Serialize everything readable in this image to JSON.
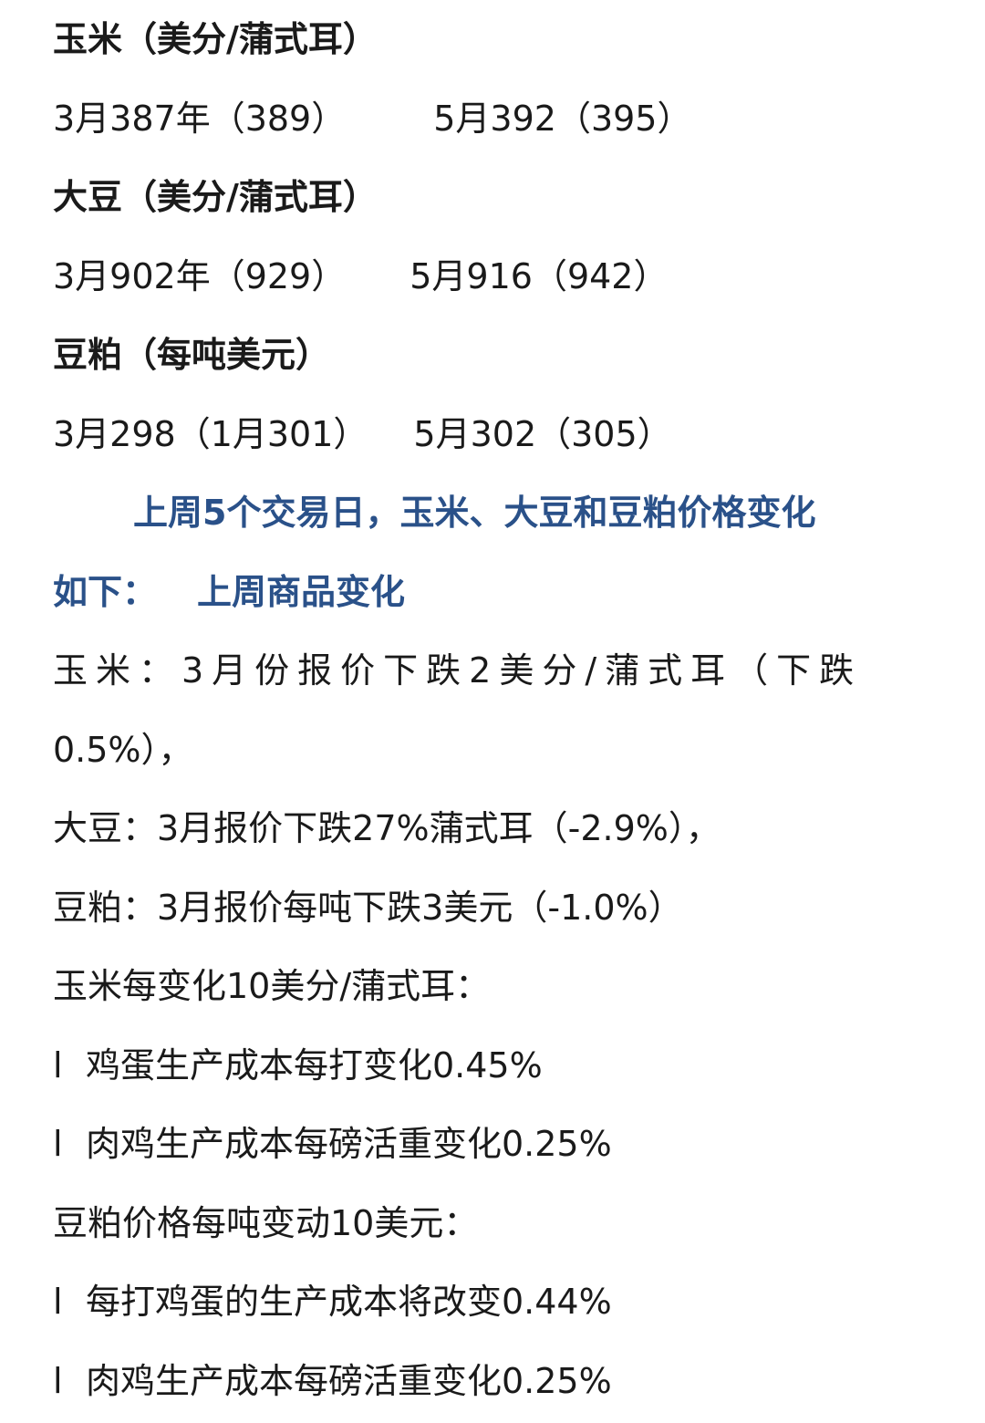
{
  "sections": [
    {
      "heading": "玉米（美分/蒲式耳）",
      "march": "3月387年（389）",
      "may": "5月392（395）"
    },
    {
      "heading": "大豆（美分/蒲式耳）",
      "march": "3月902年（929）",
      "may": "5月916（942）"
    },
    {
      "heading": "豆粕（每吨美元）",
      "march": "3月298（1月301）",
      "may": "5月302（305）"
    }
  ],
  "summary": {
    "line1": "上周5个交易日，玉米、大豆和豆粕价格变化",
    "line2a": "如下：",
    "line2b": "上周商品变化"
  },
  "changes": {
    "corn_a": "玉米：3月份报价下跌2美分/蒲式耳（下跌",
    "corn_b": "0.5%），",
    "soy": "大豆：3月报价下跌27%蒲式耳（-2.9%），",
    "meal": "豆粕：3月报价每吨下跌3美元（-1.0%）"
  },
  "corn_impact": {
    "title": "玉米每变化10美分/蒲式耳：",
    "bullet": "l",
    "items": [
      "鸡蛋生产成本每打变化0.45%",
      "肉鸡生产成本每磅活重变化0.25%"
    ]
  },
  "meal_impact": {
    "title": "豆粕价格每吨变动10美元：",
    "bullet": "l",
    "items": [
      "每打鸡蛋的生产成本将改变0.44%",
      "肉鸡生产成本每磅活重变化0.25%"
    ]
  },
  "colors": {
    "accent": "#2a5189",
    "text": "#1a1a1a"
  }
}
